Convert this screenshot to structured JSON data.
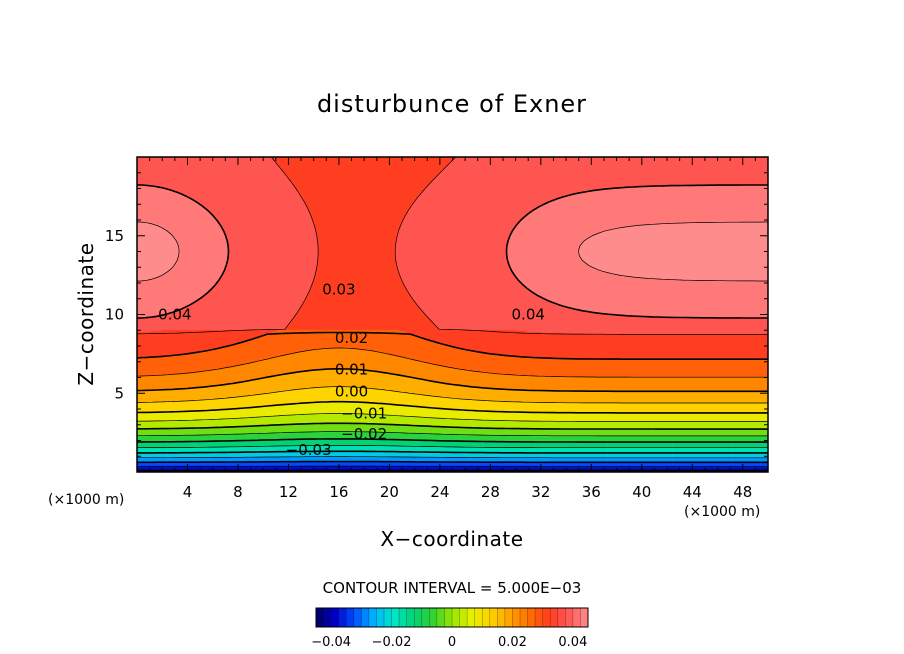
{
  "chart_data": {
    "type": "heatmap",
    "title": "disturbunce of Exner",
    "xlabel": "X−coordinate",
    "ylabel": "Z−coordinate",
    "x_unit": "(×1000 m)",
    "y_unit": "(×1000 m)",
    "xlim": [
      0,
      50
    ],
    "ylim": [
      0,
      20
    ],
    "x_ticks": [
      4,
      8,
      12,
      16,
      20,
      24,
      28,
      32,
      36,
      40,
      44,
      48
    ],
    "x_tick_labels": [
      "4",
      "8",
      "12",
      "16",
      "20",
      "24",
      "28",
      "32",
      "36",
      "40",
      "44",
      "48"
    ],
    "y_ticks": [
      5,
      10,
      15
    ],
    "y_tick_labels": [
      "5",
      "10",
      "15"
    ],
    "contour_interval_text": "CONTOUR INTERVAL = 5.000E−03",
    "contour_interval": 0.005,
    "value_range": [
      -0.045,
      0.045
    ],
    "negative_contours_dashed": true,
    "contour_labels": [
      {
        "text": "0.04",
        "x": 3,
        "z": 10
      },
      {
        "text": "0.03",
        "x": 16,
        "z": 11.6
      },
      {
        "text": "0.04",
        "x": 31,
        "z": 10
      },
      {
        "text": "0.02",
        "x": 17,
        "z": 8.5
      },
      {
        "text": "0.01",
        "x": 17,
        "z": 6.5
      },
      {
        "text": "0.00",
        "x": 17,
        "z": 5.1
      },
      {
        "text": "−0.01",
        "x": 18,
        "z": 3.7
      },
      {
        "text": "−0.02",
        "x": 18,
        "z": 2.4
      },
      {
        "text": "−0.03",
        "x": 13.6,
        "z": 1.4
      }
    ],
    "colorbar": {
      "tick_values": [
        -0.04,
        -0.02,
        0,
        0.02,
        0.04
      ],
      "tick_labels": [
        "−0.04",
        "−0.02",
        "0",
        "0.02",
        "0.04"
      ]
    },
    "colormap": [
      "#000060",
      "#0000c8",
      "#0050ff",
      "#00b4ff",
      "#00e6c8",
      "#00d278",
      "#32d232",
      "#96e600",
      "#e6f000",
      "#ffd200",
      "#ffa000",
      "#ff6e00",
      "#ff3c1e",
      "#ff5a5a",
      "#ff8c8c"
    ]
  }
}
